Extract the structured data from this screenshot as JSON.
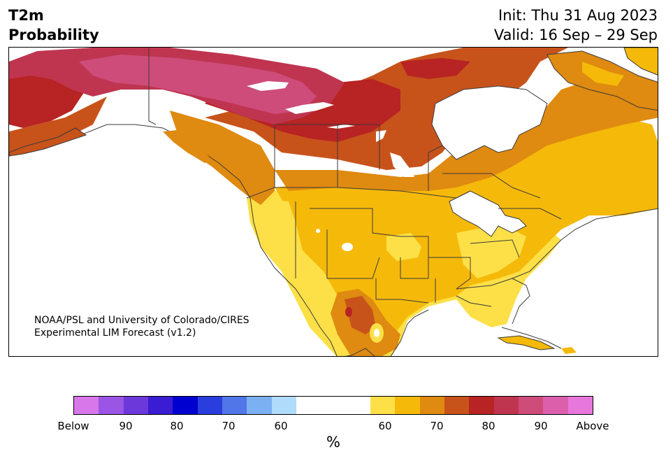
{
  "header": {
    "variable": "T2m",
    "product": "Probability",
    "init": "Init: Thu 31 Aug 2023",
    "valid": "Valid: 16 Sep – 29 Sep"
  },
  "map": {
    "region": "North America",
    "credit_line1": "NOAA/PSL and University of Colorado/CIRES",
    "credit_line2": "Experimental LIM Forecast (v1.2)",
    "colors": {
      "above_60": "#fde047",
      "above_70": "#f5b90a",
      "above_80": "#df8a10",
      "above_90": "#c7531b",
      "above_95": "#b82323",
      "above_extreme": "#bf3550",
      "above_top": "#cd4c7a",
      "land_neutral": "#ffffff",
      "border": "#3a3a3a"
    }
  },
  "colorbar": {
    "unit": "%",
    "segments": [
      {
        "color": "#d877ea"
      },
      {
        "color": "#9b55e4"
      },
      {
        "color": "#6c38da"
      },
      {
        "color": "#3a1cd2"
      },
      {
        "color": "#0000d0"
      },
      {
        "color": "#2a3ede"
      },
      {
        "color": "#5176e8"
      },
      {
        "color": "#7bb0f2"
      },
      {
        "color": "#b0dbfb"
      },
      {
        "color": "#ffffff",
        "wide": true
      },
      {
        "color": "#fde047"
      },
      {
        "color": "#f5b90a"
      },
      {
        "color": "#df8a10"
      },
      {
        "color": "#c7531b"
      },
      {
        "color": "#b82323"
      },
      {
        "color": "#bf3550"
      },
      {
        "color": "#cd4c7a"
      },
      {
        "color": "#dc5fac"
      },
      {
        "color": "#e877dc"
      }
    ],
    "labels": [
      "Below",
      "90",
      "80",
      "70",
      "60",
      "60",
      "70",
      "80",
      "90",
      "Above"
    ]
  }
}
